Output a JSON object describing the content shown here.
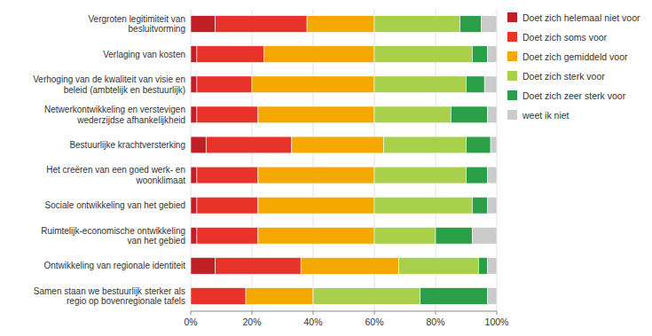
{
  "chart_data": {
    "type": "bar",
    "orientation": "horizontal",
    "stacked": true,
    "categories": [
      "Vergroten legitimiteit van\nbesluitvorming",
      "Verlaging van kosten",
      "Verhoging van de kwaliteit van visie en\nbeleid (ambtelijk en bestuurlijk)",
      "Netwerkontwikkeling en verstevigen\nwederzijdse afhankelijkheid",
      "Bestuurlijke krachtversterking",
      "Het creëren van een goed werk- en\nwoonklimaat",
      "Sociale ontwikkeling van het gebied",
      "Ruimtelijk-economische ontwikkeling\nvan het gebied",
      "Ontwikkeling van regionale identiteit",
      "Samen staan we bestuurlijk sterker als\nregio op bovenregionale tafels"
    ],
    "series": [
      {
        "name": "Doet zich helemaal niet voor",
        "color": "#BE2026",
        "values": [
          8,
          2,
          2,
          2,
          5,
          2,
          2,
          2,
          8,
          0
        ]
      },
      {
        "name": "Doet zich soms voor",
        "color": "#E8332A",
        "values": [
          30,
          22,
          18,
          20,
          28,
          20,
          20,
          20,
          28,
          18
        ]
      },
      {
        "name": "Doet zich gemiddeld voor",
        "color": "#F5A800",
        "values": [
          22,
          36,
          40,
          38,
          30,
          38,
          38,
          38,
          32,
          22
        ]
      },
      {
        "name": "Doet zich sterk voor",
        "color": "#A8D04A",
        "values": [
          28,
          32,
          30,
          25,
          27,
          30,
          32,
          20,
          26,
          35
        ]
      },
      {
        "name": "Doet zich zeer sterk voor",
        "color": "#2B9E48",
        "values": [
          7,
          5,
          6,
          12,
          8,
          7,
          5,
          12,
          3,
          22
        ]
      },
      {
        "name": "weet ik niet",
        "color": "#CBCBCB",
        "values": [
          5,
          3,
          4,
          3,
          2,
          3,
          3,
          8,
          3,
          3
        ]
      }
    ],
    "xlim": [
      0,
      100
    ],
    "xticks": [
      {
        "value": 0,
        "label": "0%"
      },
      {
        "value": 20,
        "label": "20%"
      },
      {
        "value": 40,
        "label": "40%"
      },
      {
        "value": 60,
        "label": "60%"
      },
      {
        "value": 80,
        "label": "80%"
      },
      {
        "value": 100,
        "label": "100%"
      }
    ],
    "grid": true,
    "legend": "right"
  }
}
